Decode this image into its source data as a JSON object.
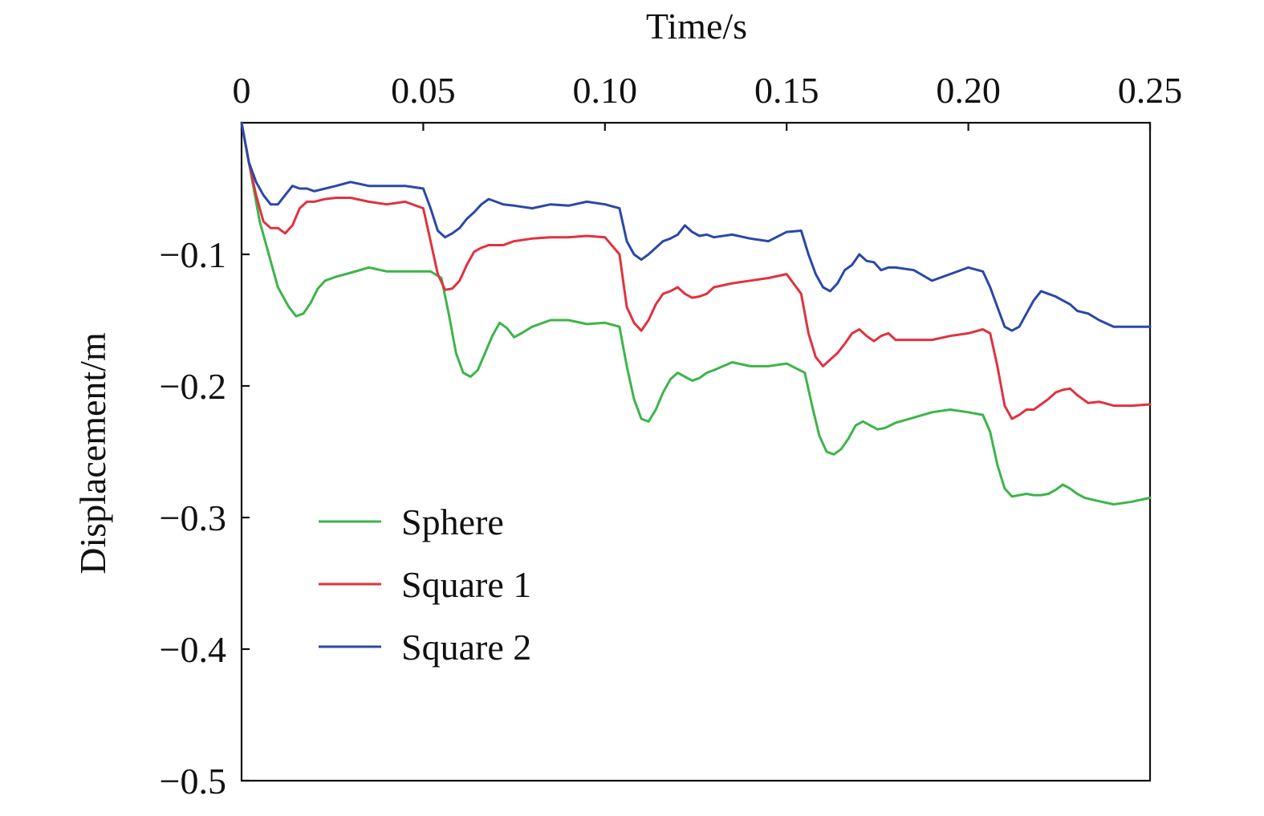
{
  "chart_data": {
    "type": "line",
    "xlabel": "Time/s",
    "ylabel": "Displacement/m",
    "x_axis_position": "top",
    "xlim": [
      0,
      0.25
    ],
    "ylim": [
      -0.5,
      0
    ],
    "x_ticks": [
      {
        "value": 0,
        "label": "0"
      },
      {
        "value": 0.05,
        "label": "0.05"
      },
      {
        "value": 0.1,
        "label": "0.10"
      },
      {
        "value": 0.15,
        "label": "0.15"
      },
      {
        "value": 0.2,
        "label": "0.20"
      },
      {
        "value": 0.25,
        "label": "0.25"
      }
    ],
    "y_ticks": [
      {
        "value": -0.1,
        "label": "−0.1"
      },
      {
        "value": -0.2,
        "label": "−0.2"
      },
      {
        "value": -0.3,
        "label": "−0.3"
      },
      {
        "value": -0.4,
        "label": "−0.4"
      },
      {
        "value": -0.5,
        "label": "−0.5"
      }
    ],
    "grid": false,
    "legend_position": "lower-left",
    "series": [
      {
        "name": "Sphere",
        "color": "#3cb54a",
        "x": [
          0,
          0.002,
          0.005,
          0.008,
          0.01,
          0.013,
          0.015,
          0.017,
          0.019,
          0.021,
          0.023,
          0.026,
          0.03,
          0.035,
          0.04,
          0.045,
          0.048,
          0.052,
          0.055,
          0.057,
          0.059,
          0.061,
          0.063,
          0.065,
          0.067,
          0.069,
          0.071,
          0.073,
          0.075,
          0.077,
          0.08,
          0.085,
          0.09,
          0.095,
          0.1,
          0.104,
          0.106,
          0.108,
          0.11,
          0.112,
          0.114,
          0.116,
          0.118,
          0.12,
          0.122,
          0.124,
          0.126,
          0.128,
          0.13,
          0.135,
          0.14,
          0.145,
          0.15,
          0.155,
          0.157,
          0.159,
          0.161,
          0.163,
          0.165,
          0.167,
          0.169,
          0.171,
          0.173,
          0.175,
          0.177,
          0.18,
          0.185,
          0.19,
          0.195,
          0.2,
          0.204,
          0.206,
          0.208,
          0.21,
          0.212,
          0.214,
          0.216,
          0.218,
          0.22,
          0.222,
          0.224,
          0.226,
          0.228,
          0.23,
          0.232,
          0.235,
          0.24,
          0.245,
          0.25
        ],
        "y": [
          0,
          -0.03,
          -0.075,
          -0.105,
          -0.125,
          -0.14,
          -0.147,
          -0.145,
          -0.137,
          -0.126,
          -0.12,
          -0.117,
          -0.114,
          -0.11,
          -0.113,
          -0.113,
          -0.113,
          -0.113,
          -0.118,
          -0.145,
          -0.175,
          -0.19,
          -0.193,
          -0.188,
          -0.175,
          -0.162,
          -0.152,
          -0.156,
          -0.163,
          -0.16,
          -0.155,
          -0.15,
          -0.15,
          -0.153,
          -0.152,
          -0.155,
          -0.185,
          -0.21,
          -0.225,
          -0.227,
          -0.218,
          -0.205,
          -0.195,
          -0.19,
          -0.193,
          -0.196,
          -0.194,
          -0.19,
          -0.188,
          -0.182,
          -0.185,
          -0.185,
          -0.183,
          -0.19,
          -0.215,
          -0.238,
          -0.25,
          -0.252,
          -0.248,
          -0.24,
          -0.23,
          -0.227,
          -0.23,
          -0.233,
          -0.232,
          -0.228,
          -0.224,
          -0.22,
          -0.218,
          -0.22,
          -0.222,
          -0.235,
          -0.26,
          -0.278,
          -0.284,
          -0.283,
          -0.282,
          -0.283,
          -0.283,
          -0.282,
          -0.279,
          -0.275,
          -0.278,
          -0.282,
          -0.285,
          -0.287,
          -0.29,
          -0.288,
          -0.285
        ]
      },
      {
        "name": "Square 1",
        "color": "#e0323f",
        "x": [
          0,
          0.002,
          0.004,
          0.006,
          0.008,
          0.01,
          0.012,
          0.014,
          0.016,
          0.018,
          0.02,
          0.023,
          0.026,
          0.03,
          0.035,
          0.04,
          0.045,
          0.05,
          0.052,
          0.054,
          0.056,
          0.058,
          0.06,
          0.062,
          0.064,
          0.066,
          0.068,
          0.07,
          0.072,
          0.075,
          0.08,
          0.085,
          0.09,
          0.095,
          0.1,
          0.104,
          0.106,
          0.108,
          0.11,
          0.112,
          0.114,
          0.116,
          0.118,
          0.12,
          0.122,
          0.124,
          0.126,
          0.128,
          0.13,
          0.135,
          0.14,
          0.145,
          0.15,
          0.154,
          0.156,
          0.158,
          0.16,
          0.162,
          0.164,
          0.166,
          0.168,
          0.17,
          0.172,
          0.174,
          0.176,
          0.178,
          0.18,
          0.185,
          0.19,
          0.195,
          0.2,
          0.204,
          0.206,
          0.208,
          0.21,
          0.212,
          0.214,
          0.216,
          0.218,
          0.22,
          0.222,
          0.224,
          0.226,
          0.228,
          0.23,
          0.233,
          0.236,
          0.24,
          0.245,
          0.25
        ],
        "y": [
          0,
          -0.03,
          -0.055,
          -0.075,
          -0.08,
          -0.08,
          -0.084,
          -0.078,
          -0.065,
          -0.06,
          -0.06,
          -0.058,
          -0.057,
          -0.057,
          -0.06,
          -0.062,
          -0.06,
          -0.065,
          -0.09,
          -0.115,
          -0.127,
          -0.126,
          -0.12,
          -0.108,
          -0.098,
          -0.095,
          -0.093,
          -0.093,
          -0.093,
          -0.09,
          -0.088,
          -0.087,
          -0.087,
          -0.086,
          -0.087,
          -0.1,
          -0.14,
          -0.152,
          -0.158,
          -0.15,
          -0.138,
          -0.13,
          -0.128,
          -0.125,
          -0.13,
          -0.133,
          -0.132,
          -0.13,
          -0.125,
          -0.122,
          -0.12,
          -0.118,
          -0.115,
          -0.13,
          -0.16,
          -0.178,
          -0.185,
          -0.18,
          -0.175,
          -0.168,
          -0.16,
          -0.157,
          -0.162,
          -0.166,
          -0.162,
          -0.16,
          -0.165,
          -0.165,
          -0.165,
          -0.162,
          -0.16,
          -0.157,
          -0.16,
          -0.185,
          -0.215,
          -0.225,
          -0.222,
          -0.218,
          -0.218,
          -0.214,
          -0.21,
          -0.205,
          -0.203,
          -0.202,
          -0.207,
          -0.213,
          -0.212,
          -0.215,
          -0.215,
          -0.214
        ]
      },
      {
        "name": "Square 2",
        "color": "#2b48a8",
        "x": [
          0,
          0.002,
          0.004,
          0.006,
          0.008,
          0.01,
          0.012,
          0.014,
          0.016,
          0.018,
          0.02,
          0.023,
          0.026,
          0.03,
          0.035,
          0.04,
          0.045,
          0.05,
          0.052,
          0.054,
          0.056,
          0.058,
          0.06,
          0.062,
          0.064,
          0.066,
          0.068,
          0.07,
          0.072,
          0.075,
          0.08,
          0.085,
          0.09,
          0.095,
          0.1,
          0.104,
          0.106,
          0.108,
          0.11,
          0.112,
          0.114,
          0.116,
          0.118,
          0.12,
          0.122,
          0.124,
          0.126,
          0.128,
          0.13,
          0.135,
          0.14,
          0.145,
          0.15,
          0.154,
          0.156,
          0.158,
          0.16,
          0.162,
          0.164,
          0.166,
          0.168,
          0.17,
          0.172,
          0.174,
          0.176,
          0.178,
          0.18,
          0.185,
          0.19,
          0.195,
          0.2,
          0.204,
          0.206,
          0.208,
          0.21,
          0.212,
          0.214,
          0.216,
          0.218,
          0.22,
          0.222,
          0.224,
          0.226,
          0.228,
          0.23,
          0.233,
          0.236,
          0.24,
          0.245,
          0.25
        ],
        "y": [
          0,
          -0.03,
          -0.045,
          -0.055,
          -0.062,
          -0.062,
          -0.055,
          -0.048,
          -0.05,
          -0.05,
          -0.052,
          -0.05,
          -0.048,
          -0.045,
          -0.048,
          -0.048,
          -0.048,
          -0.05,
          -0.065,
          -0.082,
          -0.087,
          -0.084,
          -0.08,
          -0.073,
          -0.068,
          -0.062,
          -0.058,
          -0.06,
          -0.062,
          -0.063,
          -0.065,
          -0.062,
          -0.063,
          -0.06,
          -0.062,
          -0.065,
          -0.09,
          -0.1,
          -0.104,
          -0.1,
          -0.095,
          -0.09,
          -0.088,
          -0.085,
          -0.078,
          -0.083,
          -0.086,
          -0.085,
          -0.087,
          -0.085,
          -0.088,
          -0.09,
          -0.083,
          -0.082,
          -0.1,
          -0.115,
          -0.125,
          -0.128,
          -0.122,
          -0.112,
          -0.108,
          -0.1,
          -0.105,
          -0.106,
          -0.112,
          -0.11,
          -0.11,
          -0.112,
          -0.12,
          -0.115,
          -0.11,
          -0.113,
          -0.125,
          -0.14,
          -0.155,
          -0.158,
          -0.155,
          -0.145,
          -0.135,
          -0.128,
          -0.13,
          -0.132,
          -0.135,
          -0.138,
          -0.143,
          -0.145,
          -0.15,
          -0.155,
          -0.155,
          -0.155
        ]
      }
    ]
  }
}
